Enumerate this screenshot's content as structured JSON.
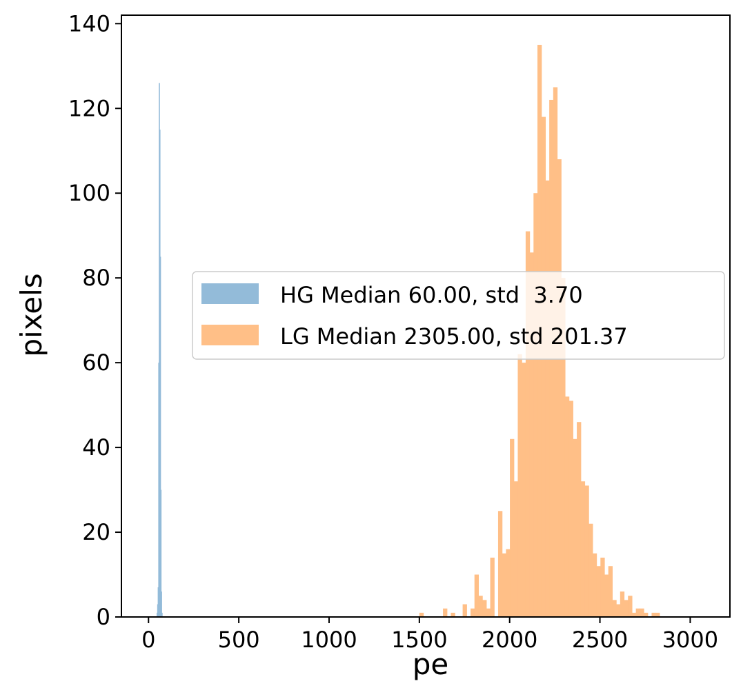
{
  "chart_data": {
    "type": "bar",
    "title": "",
    "xlabel": "pe",
    "ylabel": "pixels",
    "xlim": [
      -150,
      3220
    ],
    "ylim": [
      0,
      142
    ],
    "xticks": [
      0,
      500,
      1000,
      1500,
      2000,
      2500,
      3000
    ],
    "yticks": [
      0,
      20,
      40,
      60,
      80,
      100,
      120,
      140
    ],
    "grid": false,
    "legend_position": "center-right",
    "series": [
      {
        "name": "HG Median 60.00, std  3.70",
        "color": "#93bbd9",
        "bins": [
          {
            "x0": 45,
            "x1": 48,
            "count": 1
          },
          {
            "x0": 48,
            "x1": 51,
            "count": 3
          },
          {
            "x0": 51,
            "x1": 54,
            "count": 7
          },
          {
            "x0": 54,
            "x1": 57,
            "count": 60
          },
          {
            "x0": 57,
            "x1": 60,
            "count": 126
          },
          {
            "x0": 60,
            "x1": 63,
            "count": 115
          },
          {
            "x0": 63,
            "x1": 66,
            "count": 85
          },
          {
            "x0": 66,
            "x1": 69,
            "count": 30
          },
          {
            "x0": 69,
            "x1": 72,
            "count": 6
          },
          {
            "x0": 72,
            "x1": 75,
            "count": 1
          }
        ]
      },
      {
        "name": "LG Median 2305.00, std 201.37",
        "color": "#ffbf87",
        "bin_start": 1500,
        "bin_width": 21.8,
        "counts": [
          1,
          0,
          0,
          0,
          0,
          0,
          2,
          0,
          1,
          0,
          0,
          3,
          0,
          2,
          10,
          5,
          4,
          2,
          14,
          0,
          25,
          15,
          16,
          42,
          32,
          62,
          60,
          91,
          86,
          100,
          135,
          118,
          103,
          122,
          125,
          108,
          80,
          52,
          51,
          42,
          46,
          32,
          31,
          22,
          15,
          12,
          14,
          10,
          12,
          4,
          3,
          6,
          4,
          5,
          1,
          2,
          2,
          1,
          0,
          1,
          1
        ]
      }
    ]
  }
}
